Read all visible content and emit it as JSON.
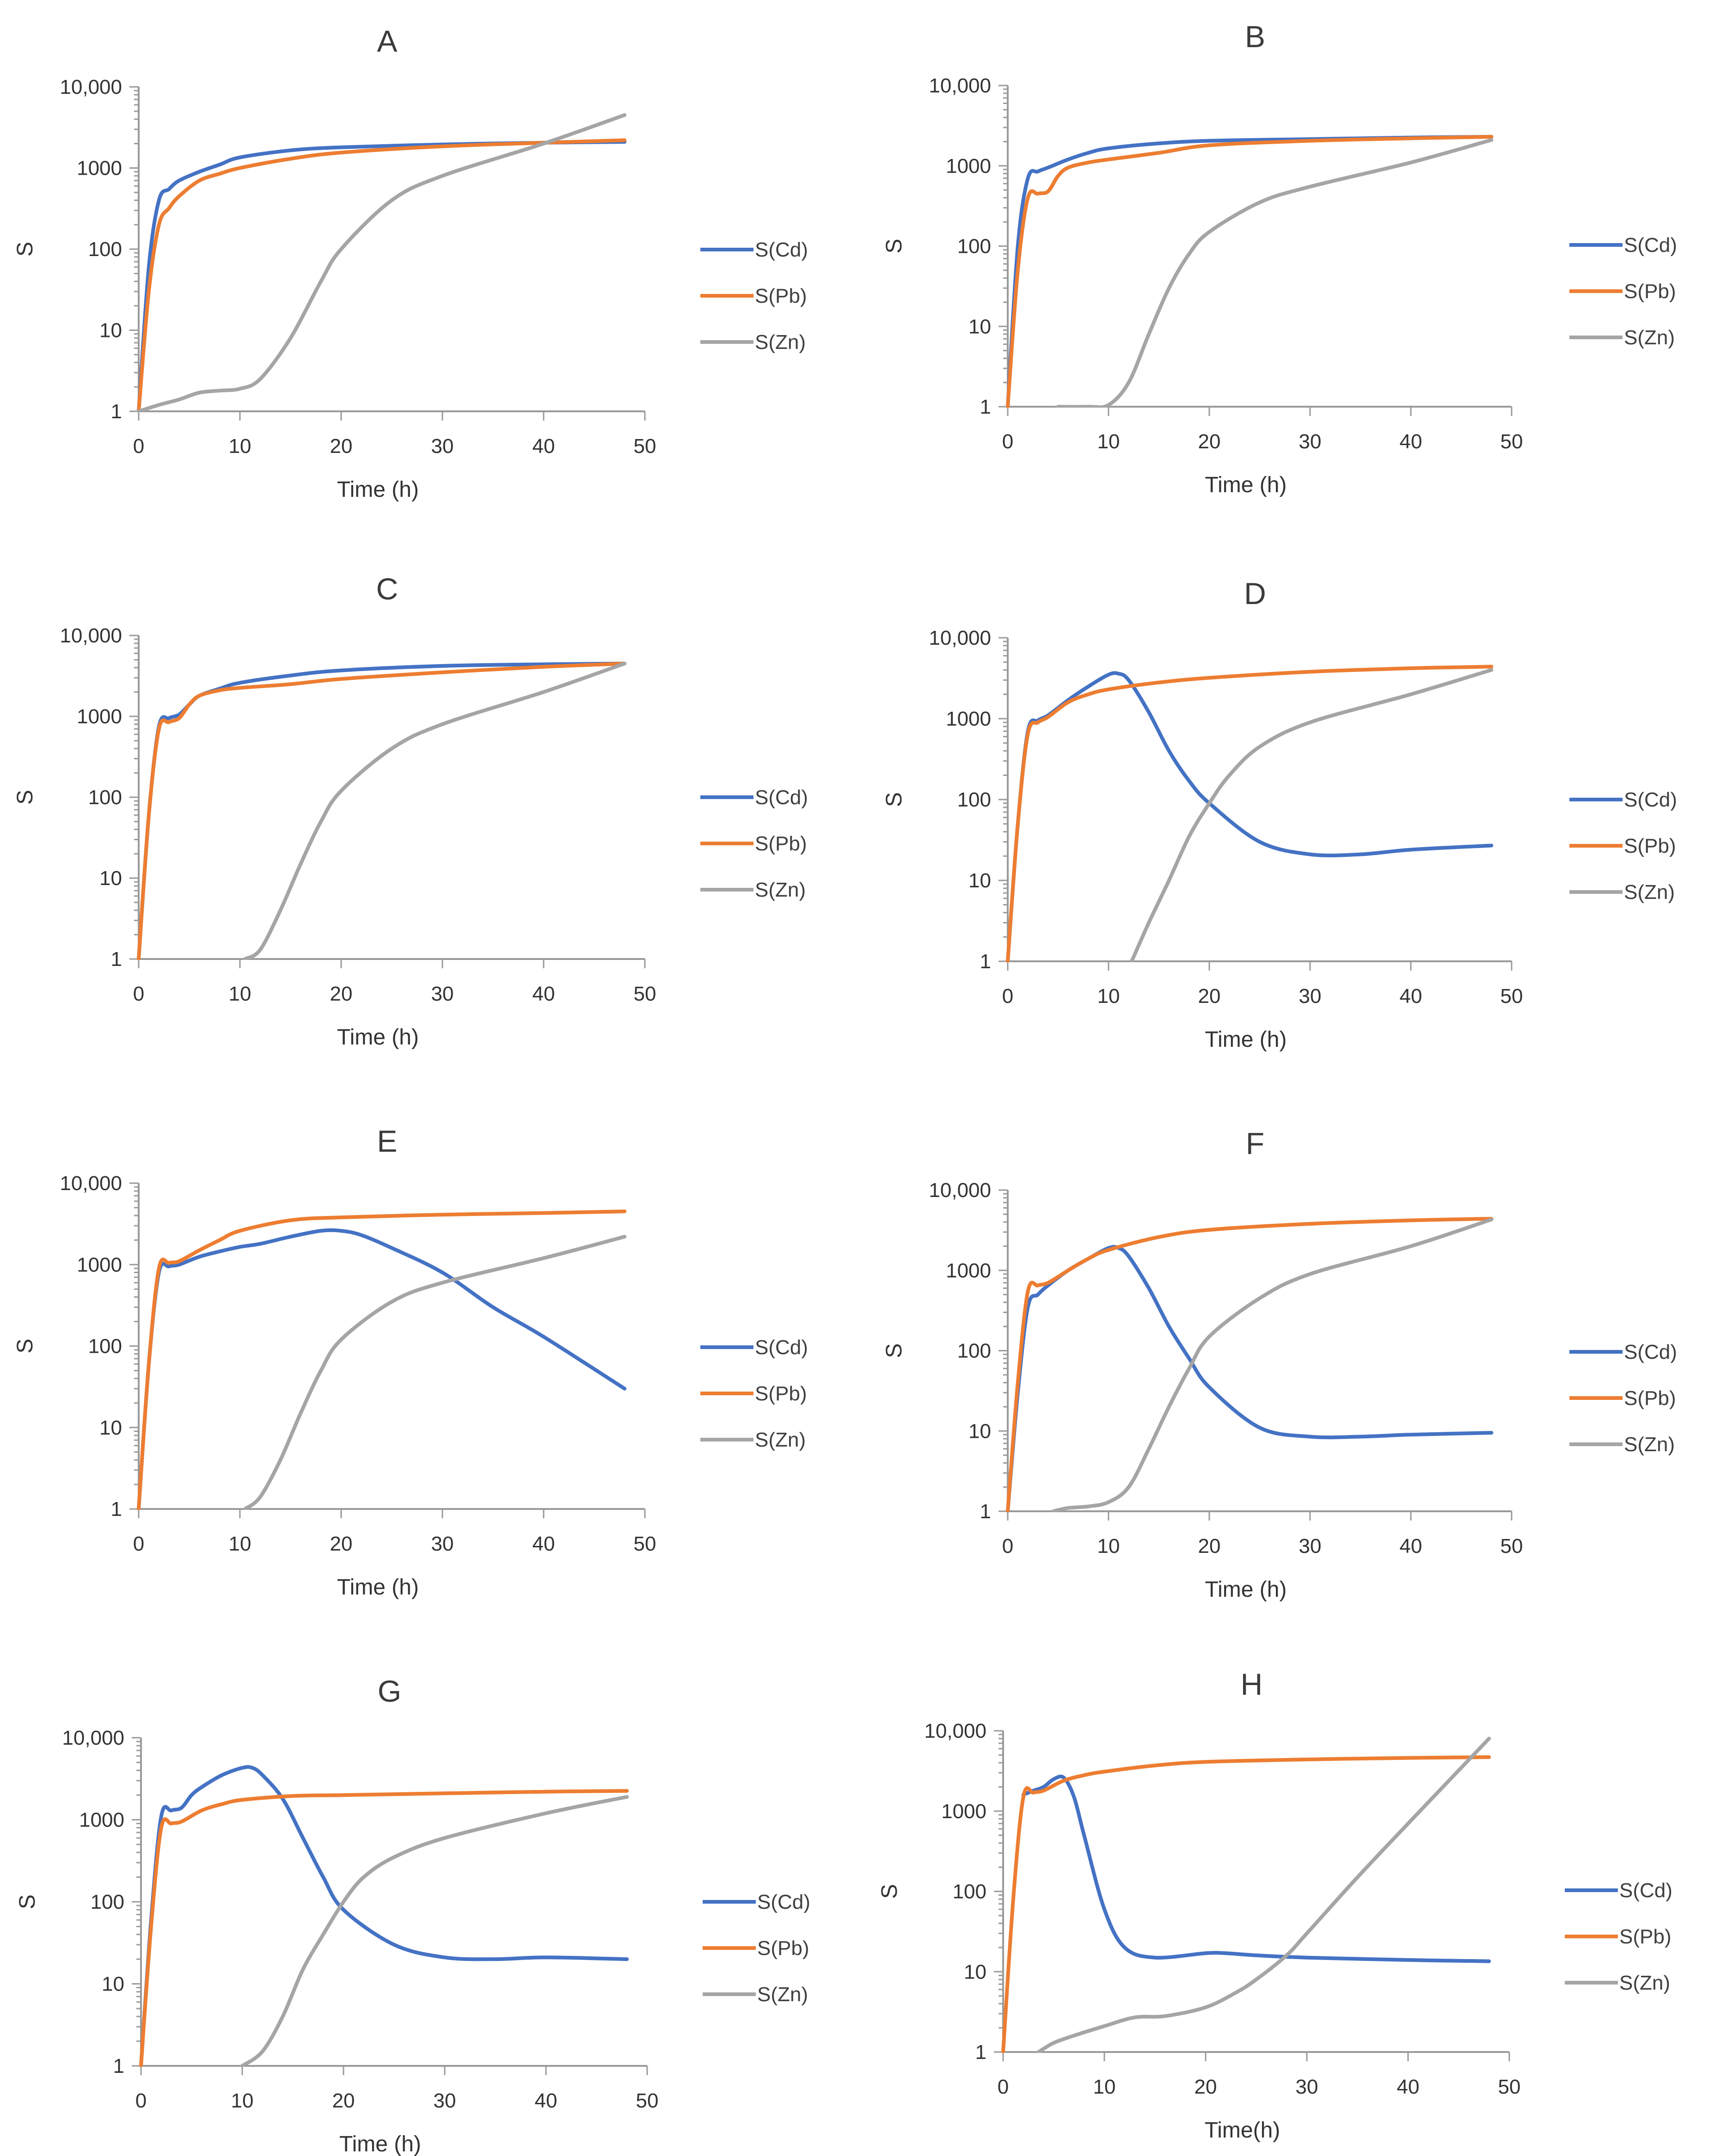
{
  "colors": {
    "Cd": "#4472c4",
    "Pb": "#ed7d31",
    "Zn": "#a5a5a5",
    "axis": "#9a9a9a"
  },
  "chart_data": [
    {
      "panel": "A",
      "type": "line",
      "title": "A",
      "xlabel": "Time (h)",
      "ylabel": "S",
      "xlim": [
        0,
        50
      ],
      "ylim": [
        1,
        10000
      ],
      "yscale": "log",
      "xticks": [
        "0",
        "10",
        "20",
        "30",
        "40",
        "50"
      ],
      "yticks": [
        "1",
        "10",
        "100",
        "1000",
        "10,000"
      ],
      "series": [
        {
          "name": "S(Cd)",
          "key": "Cd",
          "x": [
            0,
            1,
            2,
            3,
            4,
            6,
            8,
            10,
            15,
            20,
            30,
            40,
            48
          ],
          "y": [
            1,
            60,
            400,
            550,
            700,
            900,
            1100,
            1350,
            1650,
            1800,
            1950,
            2050,
            2100
          ]
        },
        {
          "name": "S(Pb)",
          "key": "Pb",
          "x": [
            0,
            1,
            2,
            3,
            4,
            6,
            8,
            10,
            15,
            20,
            30,
            40,
            48
          ],
          "y": [
            1,
            30,
            200,
            320,
            450,
            700,
            850,
            1000,
            1300,
            1550,
            1850,
            2050,
            2200
          ]
        },
        {
          "name": "S(Zn)",
          "key": "Zn",
          "x": [
            0,
            2,
            4,
            6,
            8,
            10,
            12,
            15,
            18,
            20,
            25,
            30,
            40,
            48
          ],
          "y": [
            1,
            1.2,
            1.4,
            1.7,
            1.8,
            1.9,
            2.5,
            8,
            40,
            100,
            400,
            800,
            2000,
            4500
          ]
        }
      ]
    },
    {
      "panel": "B",
      "type": "line",
      "title": "B",
      "xlabel": "Time (h)",
      "ylabel": "S",
      "xlim": [
        0,
        50
      ],
      "ylim": [
        1,
        10000
      ],
      "yscale": "log",
      "xticks": [
        "0",
        "10",
        "20",
        "30",
        "40",
        "50"
      ],
      "yticks": [
        "1",
        "10",
        "100",
        "1000",
        "10,000"
      ],
      "series": [
        {
          "name": "S(Cd)",
          "key": "Cd",
          "x": [
            0,
            1,
            2,
            3,
            4,
            6,
            8,
            10,
            15,
            20,
            30,
            40,
            48
          ],
          "y": [
            1,
            100,
            700,
            850,
            950,
            1200,
            1450,
            1650,
            1900,
            2050,
            2150,
            2250,
            2300
          ]
        },
        {
          "name": "S(Pb)",
          "key": "Pb",
          "x": [
            0,
            1,
            2,
            3,
            4,
            5,
            6,
            8,
            10,
            15,
            20,
            30,
            40,
            48
          ],
          "y": [
            1,
            50,
            400,
            450,
            480,
            750,
            950,
            1100,
            1200,
            1450,
            1800,
            2050,
            2200,
            2300
          ]
        },
        {
          "name": "S(Zn)",
          "key": "Zn",
          "x": [
            5,
            8,
            10,
            12,
            14,
            16,
            18,
            20,
            25,
            30,
            40,
            48
          ],
          "y": [
            1,
            1,
            1.05,
            2,
            8,
            30,
            80,
            150,
            350,
            550,
            1100,
            2100
          ]
        }
      ]
    },
    {
      "panel": "C",
      "type": "line",
      "title": "C",
      "xlabel": "Time (h)",
      "ylabel": "S",
      "xlim": [
        0,
        50
      ],
      "ylim": [
        1,
        10000
      ],
      "yscale": "log",
      "xticks": [
        "0",
        "10",
        "20",
        "30",
        "40",
        "50"
      ],
      "yticks": [
        "1",
        "10",
        "100",
        "1000",
        "10,000"
      ],
      "series": [
        {
          "name": "S(Cd)",
          "key": "Cd",
          "x": [
            0,
            1,
            2,
            3,
            4,
            5,
            6,
            8,
            10,
            15,
            20,
            30,
            40,
            48
          ],
          "y": [
            1,
            60,
            750,
            950,
            1050,
            1400,
            1800,
            2200,
            2600,
            3200,
            3700,
            4200,
            4400,
            4500
          ]
        },
        {
          "name": "S(Pb)",
          "key": "Pb",
          "x": [
            0,
            1,
            2,
            3,
            4,
            5,
            6,
            8,
            10,
            15,
            20,
            30,
            40,
            48
          ],
          "y": [
            1,
            60,
            700,
            850,
            950,
            1400,
            1800,
            2100,
            2250,
            2500,
            2900,
            3500,
            4100,
            4500
          ]
        },
        {
          "name": "S(Zn)",
          "key": "Zn",
          "x": [
            10.5,
            12,
            14,
            16,
            18,
            20,
            25,
            30,
            40,
            48
          ],
          "y": [
            1,
            1.3,
            4,
            15,
            50,
            120,
            400,
            800,
            2000,
            4500
          ]
        }
      ]
    },
    {
      "panel": "D",
      "type": "line",
      "title": "D",
      "xlabel": "Time (h)",
      "ylabel": "S",
      "xlim": [
        0,
        50
      ],
      "ylim": [
        1,
        10000
      ],
      "yscale": "log",
      "xticks": [
        "0",
        "10",
        "20",
        "30",
        "40",
        "50"
      ],
      "yticks": [
        "1",
        "10",
        "100",
        "1000",
        "10,000"
      ],
      "series": [
        {
          "name": "S(Cd)",
          "key": "Cd",
          "x": [
            0,
            1,
            2,
            3,
            4,
            6,
            8,
            10,
            11,
            12,
            14,
            16,
            18,
            20,
            25,
            30,
            35,
            40,
            48
          ],
          "y": [
            1,
            50,
            700,
            950,
            1100,
            1700,
            2500,
            3500,
            3600,
            3000,
            1200,
            400,
            170,
            90,
            30,
            21,
            21,
            24,
            27
          ]
        },
        {
          "name": "S(Pb)",
          "key": "Pb",
          "x": [
            0,
            1,
            2,
            3,
            4,
            6,
            8,
            10,
            15,
            20,
            30,
            40,
            48
          ],
          "y": [
            1,
            50,
            650,
            900,
            1050,
            1600,
            2000,
            2300,
            2800,
            3200,
            3800,
            4200,
            4400
          ]
        },
        {
          "name": "S(Zn)",
          "key": "Zn",
          "x": [
            12.3,
            14,
            16,
            18,
            20,
            22,
            25,
            30,
            40,
            48
          ],
          "y": [
            1,
            3,
            10,
            35,
            90,
            200,
            450,
            900,
            2000,
            4000
          ]
        }
      ]
    },
    {
      "panel": "E",
      "type": "line",
      "title": "E",
      "xlabel": "Time (h)",
      "ylabel": "S",
      "xlim": [
        0,
        50
      ],
      "ylim": [
        1,
        10000
      ],
      "yscale": "log",
      "xticks": [
        "0",
        "10",
        "20",
        "30",
        "40",
        "50"
      ],
      "yticks": [
        "1",
        "10",
        "100",
        "1000",
        "10,000"
      ],
      "series": [
        {
          "name": "S(Cd)",
          "key": "Cd",
          "x": [
            0,
            1,
            2,
            3,
            4,
            6,
            8,
            10,
            12,
            15,
            18,
            20,
            22,
            25,
            30,
            35,
            40,
            48
          ],
          "y": [
            1,
            60,
            800,
            950,
            1000,
            1250,
            1450,
            1650,
            1800,
            2200,
            2600,
            2600,
            2300,
            1600,
            800,
            300,
            130,
            30
          ]
        },
        {
          "name": "S(Pb)",
          "key": "Pb",
          "x": [
            0,
            1,
            2,
            3,
            4,
            6,
            8,
            10,
            15,
            20,
            30,
            40,
            48
          ],
          "y": [
            1,
            60,
            900,
            1050,
            1100,
            1500,
            2000,
            2600,
            3500,
            3800,
            4100,
            4300,
            4500
          ]
        },
        {
          "name": "S(Zn)",
          "key": "Zn",
          "x": [
            10.5,
            12,
            14,
            16,
            18,
            20,
            25,
            30,
            40,
            48
          ],
          "y": [
            1,
            1.4,
            4,
            15,
            50,
            120,
            350,
            600,
            1200,
            2200
          ]
        }
      ]
    },
    {
      "panel": "F",
      "type": "line",
      "title": "F",
      "xlabel": "Time (h)",
      "ylabel": "S",
      "xlim": [
        0,
        50
      ],
      "ylim": [
        1,
        10000
      ],
      "yscale": "log",
      "xticks": [
        "0",
        "10",
        "20",
        "30",
        "40",
        "50"
      ],
      "yticks": [
        "1",
        "10",
        "100",
        "1000",
        "10,000"
      ],
      "series": [
        {
          "name": "S(Cd)",
          "key": "Cd",
          "x": [
            0,
            1,
            2,
            3,
            4,
            6,
            8,
            10,
            11,
            12,
            14,
            16,
            18,
            20,
            25,
            30,
            35,
            40,
            48
          ],
          "y": [
            1,
            30,
            350,
            500,
            650,
            1000,
            1400,
            1900,
            1900,
            1500,
            600,
            200,
            80,
            35,
            11,
            8.5,
            8.5,
            9,
            9.5
          ]
        },
        {
          "name": "S(Pb)",
          "key": "Pb",
          "x": [
            0,
            1,
            2,
            3,
            4,
            6,
            8,
            10,
            15,
            20,
            30,
            40,
            48
          ],
          "y": [
            1,
            40,
            550,
            650,
            700,
            1000,
            1400,
            1800,
            2600,
            3200,
            3800,
            4200,
            4400
          ]
        },
        {
          "name": "S(Zn)",
          "key": "Zn",
          "x": [
            4.5,
            6,
            8,
            10,
            12,
            14,
            16,
            18,
            20,
            25,
            30,
            40,
            48
          ],
          "y": [
            1,
            1.1,
            1.15,
            1.3,
            2,
            6,
            20,
            60,
            150,
            450,
            900,
            2000,
            4300
          ]
        }
      ]
    },
    {
      "panel": "G",
      "type": "line",
      "title": "G",
      "xlabel": "Time (h)",
      "ylabel": "S",
      "xlim": [
        0,
        50
      ],
      "ylim": [
        1,
        10000
      ],
      "yscale": "log",
      "xticks": [
        "0",
        "10",
        "20",
        "30",
        "40",
        "50"
      ],
      "yticks": [
        "1",
        "10",
        "100",
        "1000",
        "10,000"
      ],
      "series": [
        {
          "name": "S(Cd)",
          "key": "Cd",
          "x": [
            0,
            1,
            2,
            3,
            4,
            5,
            6,
            8,
            10,
            11,
            12,
            14,
            16,
            18,
            20,
            25,
            30,
            35,
            40,
            48
          ],
          "y": [
            1,
            60,
            1100,
            1300,
            1400,
            2000,
            2500,
            3500,
            4300,
            4300,
            3500,
            1800,
            600,
            200,
            80,
            30,
            21,
            20,
            21,
            20
          ]
        },
        {
          "name": "S(Pb)",
          "key": "Pb",
          "x": [
            0,
            1,
            2,
            3,
            4,
            6,
            8,
            10,
            15,
            20,
            30,
            40,
            48
          ],
          "y": [
            1,
            50,
            800,
            900,
            950,
            1300,
            1550,
            1750,
            1950,
            2000,
            2100,
            2200,
            2250
          ]
        },
        {
          "name": "S(Zn)",
          "key": "Zn",
          "x": [
            10,
            12,
            14,
            16,
            18,
            20,
            22,
            25,
            30,
            40,
            48
          ],
          "y": [
            1,
            1.5,
            4,
            15,
            40,
            100,
            200,
            350,
            600,
            1200,
            1900
          ]
        }
      ]
    },
    {
      "panel": "H",
      "type": "line",
      "title": "H",
      "xlabel": "Time(h)",
      "ylabel": "S",
      "xlim": [
        0,
        50
      ],
      "ylim": [
        1,
        10000
      ],
      "yscale": "log",
      "xticks": [
        "0",
        "10",
        "20",
        "30",
        "40",
        "50"
      ],
      "yticks": [
        "1",
        "10",
        "100",
        "1000",
        "10,000"
      ],
      "series": [
        {
          "name": "S(Cd)",
          "key": "Cd",
          "x": [
            2,
            3,
            4,
            5,
            6,
            7,
            8,
            10,
            12,
            15,
            20,
            22,
            25,
            30,
            40,
            48
          ],
          "y": [
            1600,
            1800,
            2000,
            2500,
            2600,
            1500,
            500,
            60,
            20,
            15,
            17,
            17,
            16,
            15,
            14,
            13.5
          ]
        },
        {
          "name": "S(Pb)",
          "key": "Pb",
          "x": [
            0,
            1,
            2,
            3,
            4,
            6,
            8,
            10,
            15,
            20,
            30,
            40,
            48
          ],
          "y": [
            1,
            80,
            1500,
            1700,
            1800,
            2400,
            2800,
            3100,
            3700,
            4100,
            4400,
            4600,
            4700
          ]
        },
        {
          "name": "S(Zn)",
          "key": "Zn",
          "x": [
            3.5,
            5,
            7,
            10,
            13,
            16,
            20,
            23,
            25,
            28,
            30,
            35,
            40,
            48
          ],
          "y": [
            1,
            1.3,
            1.6,
            2.1,
            2.7,
            2.8,
            3.6,
            5.5,
            8,
            16,
            30,
            150,
            700,
            8000
          ]
        }
      ]
    }
  ]
}
